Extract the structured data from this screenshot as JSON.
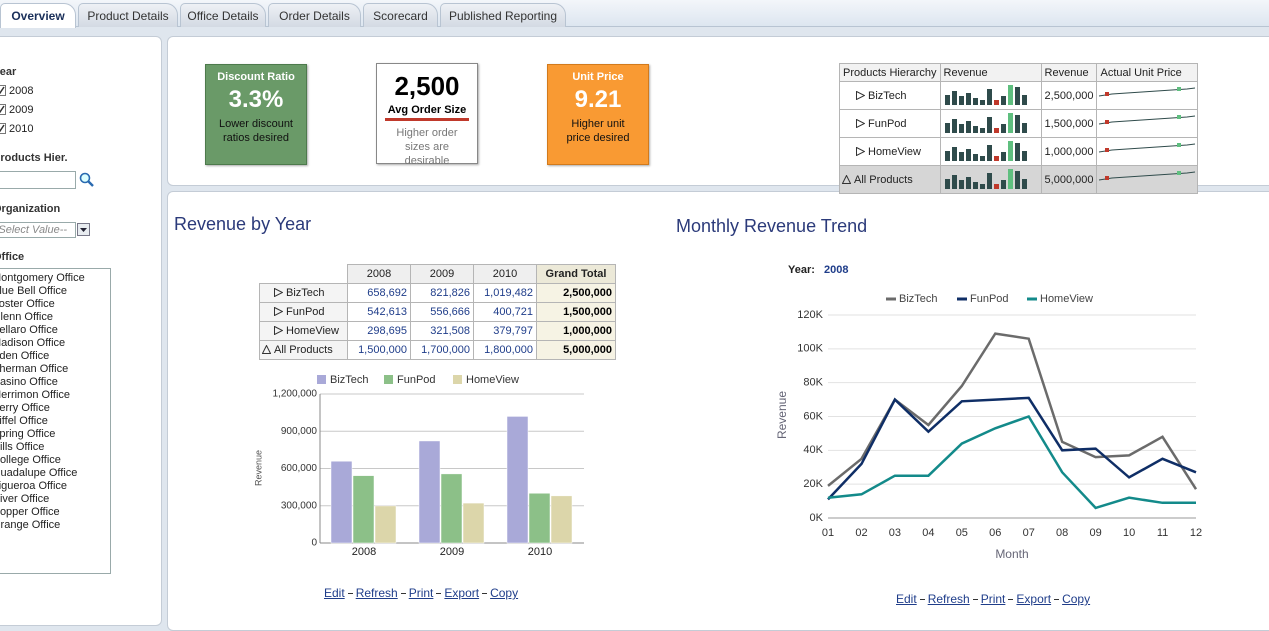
{
  "tabs": [
    "Overview",
    "Product Details",
    "Office Details",
    "Order Details",
    "Scorecard",
    "Published Reporting"
  ],
  "sidebar": {
    "year_label": "Year",
    "years": [
      "2008",
      "2009",
      "2010"
    ],
    "products_label": "Products Hier.",
    "organization_label": "Organization",
    "select_placeholder": "-- Select Value--",
    "office_label": "Office",
    "offices": [
      "Montgomery Office",
      "Blue Bell Office",
      "Foster Office",
      "Glenn Office",
      "Bellaro Office",
      "Madison Office",
      "Eden Office",
      "Sherman Office",
      "Casino Office",
      "Merrimon Office",
      "Perry Office",
      "Eiffel Office",
      "Spring Office",
      "Hills Office",
      "College Office",
      "Guadalupe Office",
      "Figueroa Office",
      "River Office",
      "Hopper Office",
      "Orange Office"
    ]
  },
  "kpis": [
    {
      "title": "Discount Ratio",
      "value": "3.3%",
      "note": "Lower discount ratios desired"
    },
    {
      "title": "Avg Order Size",
      "value": "2,500",
      "note": "Higher order sizes are desirable"
    },
    {
      "title": "Unit Price",
      "value": "9.21",
      "note": "Higher unit price desired"
    }
  ],
  "sparkline_table": {
    "headers": [
      "Products Hierarchy",
      "Revenue",
      "Revenue",
      "Actual Unit Price"
    ],
    "rows": [
      [
        "BizTech",
        "2,500,000"
      ],
      [
        "FunPod",
        "1,500,000"
      ],
      [
        "HomeView",
        "1,000,000"
      ],
      [
        "All Products",
        "5,000,000"
      ]
    ]
  },
  "revenue_table": {
    "title": "Revenue by Year",
    "headers": [
      "2008",
      "2009",
      "2010",
      "Grand Total"
    ],
    "rows": [
      [
        "BizTech",
        "658,692",
        "821,826",
        "1,019,482",
        "2,500,000"
      ],
      [
        "FunPod",
        "542,613",
        "556,666",
        "400,721",
        "1,500,000"
      ],
      [
        "HomeView",
        "298,695",
        "321,508",
        "379,797",
        "1,000,000"
      ],
      [
        "All Products",
        "1,500,000",
        "1,700,000",
        "1,800,000",
        "5,000,000"
      ]
    ]
  },
  "links": [
    "Edit",
    "Refresh",
    "Print",
    "Export",
    "Copy"
  ],
  "chart_data": [
    {
      "type": "bar",
      "categories": [
        "2008",
        "2009",
        "2010"
      ],
      "y_label": "Revenue",
      "series": [
        {
          "name": "BizTech",
          "color": "#a9a9d8",
          "values": [
            658692,
            821826,
            1019482
          ]
        },
        {
          "name": "FunPod",
          "color": "#8cc088",
          "values": [
            542613,
            556666,
            400721
          ]
        },
        {
          "name": "HomeView",
          "color": "#dcd6aa",
          "values": [
            298695,
            321508,
            379797
          ]
        }
      ],
      "ylim": [
        0,
        1200000
      ],
      "yticks": [
        0,
        {
          "value": 300000,
          "label": "300,000"
        },
        {
          "value": 600000,
          "label": "600,000"
        },
        {
          "value": 900000,
          "label": "900,000"
        },
        {
          "value": 1200000,
          "label": "1,200,000"
        }
      ],
      "grid": true
    },
    {
      "type": "line",
      "title": "Monthly Revenue Trend",
      "filter_label": "Year:",
      "filter_value": "2008",
      "x_label": "Month",
      "y_label": "Revenue",
      "categories": [
        "01",
        "02",
        "03",
        "04",
        "05",
        "06",
        "07",
        "08",
        "09",
        "10",
        "11",
        "12"
      ],
      "series": [
        {
          "name": "BizTech",
          "color": "#6b6b6b",
          "values": [
            19000,
            35000,
            70000,
            55000,
            78000,
            109000,
            106000,
            45000,
            36000,
            37000,
            48000,
            17000
          ]
        },
        {
          "name": "FunPod",
          "color": "#0f2e66",
          "values": [
            11000,
            32000,
            70000,
            51000,
            69000,
            70000,
            71000,
            40000,
            41000,
            24000,
            35000,
            27000
          ]
        },
        {
          "name": "HomeView",
          "color": "#138a8a",
          "values": [
            12000,
            14000,
            25000,
            25000,
            44000,
            53000,
            60000,
            27000,
            6000,
            12000,
            9000,
            9000
          ]
        }
      ],
      "ylim": [
        0,
        120000
      ],
      "yticks": [
        {
          "value": 0,
          "label": "0K"
        },
        {
          "value": 20000,
          "label": "20K"
        },
        {
          "value": 40000,
          "label": "40K"
        },
        {
          "value": 60000,
          "label": "60K"
        },
        {
          "value": 80000,
          "label": "80K"
        },
        {
          "value": 100000,
          "label": "100K"
        },
        {
          "value": 120000,
          "label": "120K"
        }
      ],
      "grid": true
    }
  ]
}
